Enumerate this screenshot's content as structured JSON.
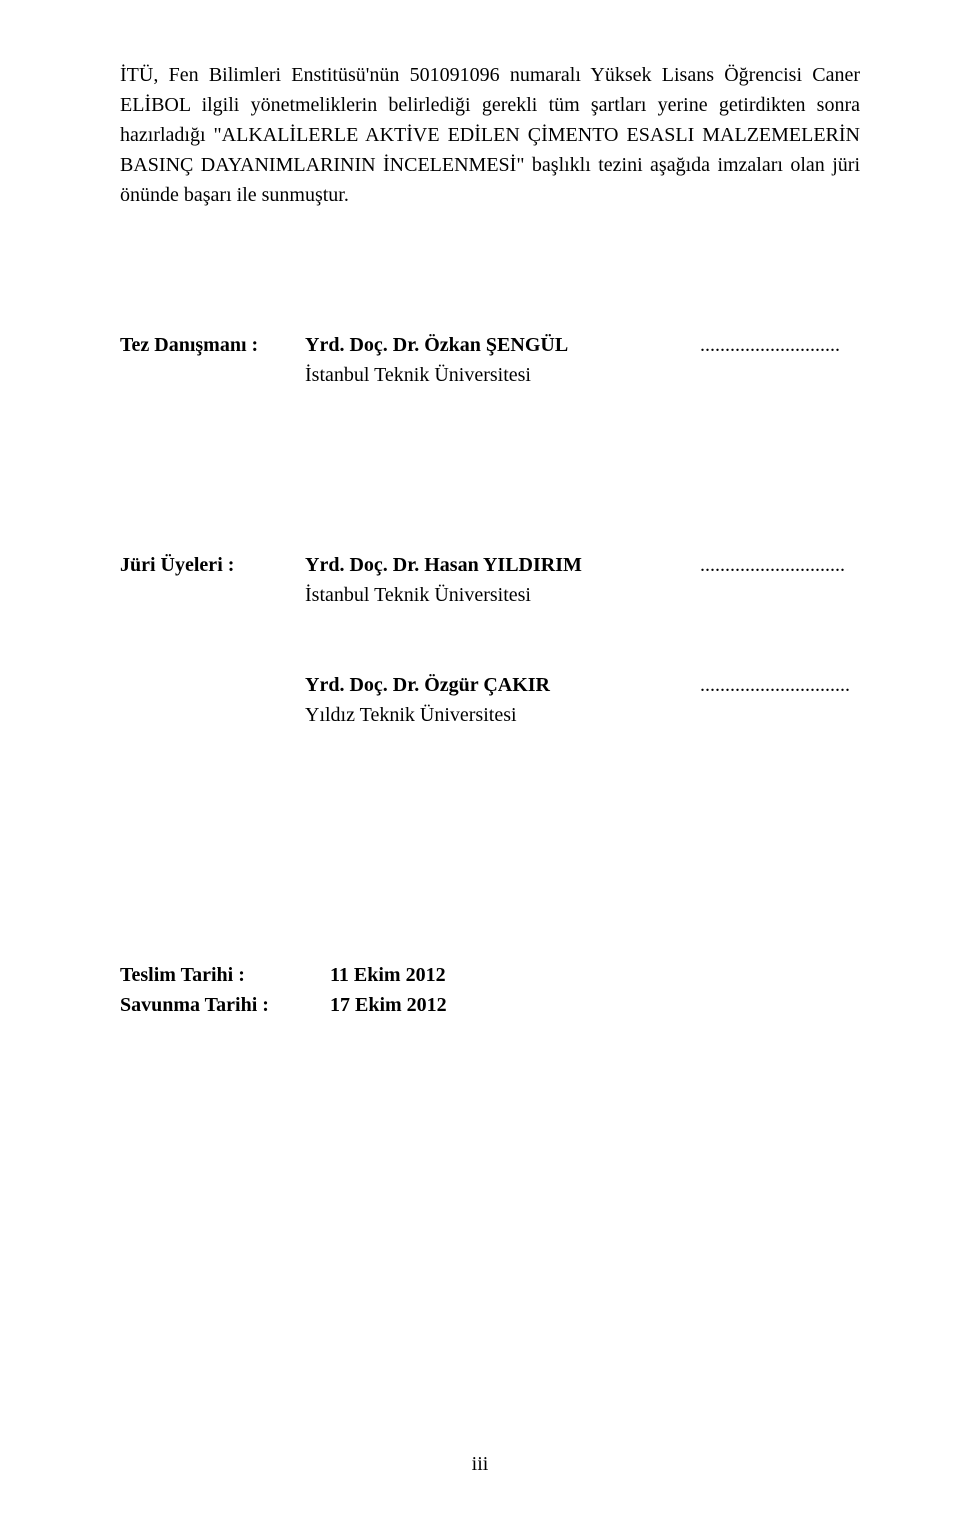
{
  "intro": {
    "text": "İTÜ, Fen Bilimleri Enstitüsü'nün 501091096 numaralı Yüksek Lisans Öğrencisi Caner ELİBOL ilgili yönetmeliklerin belirlediği gerekli tüm şartları yerine getirdikten sonra hazırladığı \"ALKALİLERLE AKTİVE EDİLEN ÇİMENTO ESASLI MALZEMELERİN BASINÇ DAYANIMLARININ İNCELENMESİ\" başlıklı tezini aşağıda imzaları olan jüri önünde başarı ile sunmuştur."
  },
  "advisor": {
    "label": "Tez Danışmanı :",
    "name": "Yrd. Doç. Dr. Özkan ŞENGÜL",
    "institution": "İstanbul Teknik Üniversitesi",
    "dots": "............................"
  },
  "jury": {
    "label": "Jüri Üyeleri :",
    "members": [
      {
        "name": "Yrd. Doç. Dr. Hasan YILDIRIM",
        "institution": "İstanbul Teknik Üniversitesi",
        "dots": "............................."
      },
      {
        "name": "Yrd. Doç. Dr. Özgür ÇAKIR",
        "institution": "Yıldız Teknik Üniversitesi",
        "dots": ".............................."
      }
    ]
  },
  "dates": {
    "submission": {
      "label": "Teslim Tarihi :",
      "value": "11 Ekim 2012"
    },
    "defense": {
      "label": "Savunma Tarihi :",
      "value": "17 Ekim 2012"
    }
  },
  "pageNumber": "iii"
}
